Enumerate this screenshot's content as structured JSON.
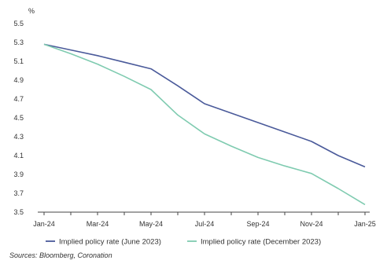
{
  "chart_data": {
    "type": "line",
    "title": "",
    "xlabel": "",
    "ylabel": "%",
    "ylim": [
      3.5,
      5.5
    ],
    "yticks": [
      3.5,
      3.7,
      3.9,
      4.1,
      4.3,
      4.5,
      4.7,
      4.9,
      5.1,
      5.3,
      5.5
    ],
    "x": [
      "Jan-24",
      "Feb-24",
      "Mar-24",
      "Apr-24",
      "May-24",
      "Jun-24",
      "Jul-24",
      "Aug-24",
      "Sep-24",
      "Oct-24",
      "Nov-24",
      "Dec-24",
      "Jan-25"
    ],
    "xtick_labels": [
      "Jan-24",
      "Mar-24",
      "May-24",
      "Jul-24",
      "Sep-24",
      "Nov-24",
      "Jan-25"
    ],
    "grid": false,
    "legend_position": "bottom",
    "series": [
      {
        "name": "Implied policy rate (June 2023)",
        "color": "#4a5a9a",
        "values": [
          5.28,
          5.22,
          5.16,
          5.09,
          5.02,
          4.84,
          4.65,
          4.55,
          4.45,
          4.35,
          4.25,
          4.1,
          3.98
        ]
      },
      {
        "name": "Implied policy rate (December 2023)",
        "color": "#7fcbb0",
        "values": [
          5.28,
          5.18,
          5.07,
          4.94,
          4.8,
          4.53,
          4.33,
          4.2,
          4.08,
          3.99,
          3.91,
          3.75,
          3.58
        ]
      }
    ]
  },
  "source": "Sources: Bloomberg, Coronation"
}
